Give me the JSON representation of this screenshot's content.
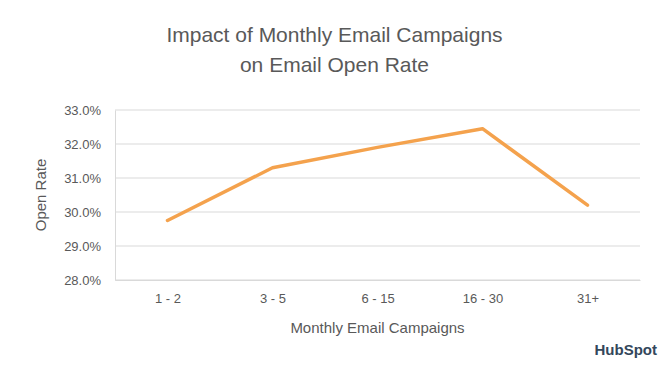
{
  "chart_data": {
    "type": "line",
    "title": "Impact of Monthly Email Campaigns\non Email Open Rate",
    "x_label": "Monthly Email Campaigns",
    "y_label": "Open Rate",
    "source": "HubSpot",
    "categories": [
      "1 - 2",
      "3 - 5",
      "6 - 15",
      "16 - 30",
      "31+"
    ],
    "values": [
      29.75,
      31.3,
      31.9,
      32.45,
      30.2
    ],
    "color": "#f4a24d",
    "ylim": [
      28,
      33
    ],
    "yticks": [
      {
        "value": 28,
        "label": "28.0%"
      },
      {
        "value": 29,
        "label": "29.0%"
      },
      {
        "value": 30,
        "label": "30.0%"
      },
      {
        "value": 31,
        "label": "31.0%"
      },
      {
        "value": 32,
        "label": "32.0%"
      },
      {
        "value": 33,
        "label": "33.0%"
      }
    ],
    "grid": true
  }
}
